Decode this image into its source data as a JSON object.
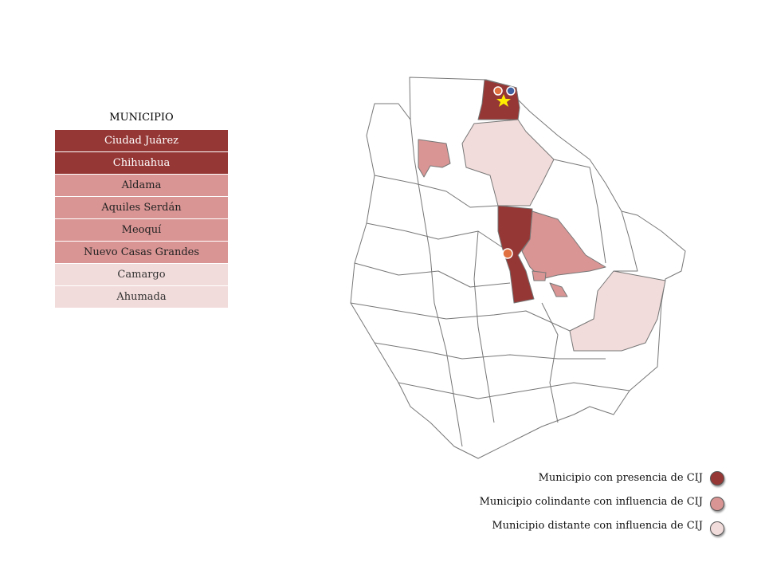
{
  "table": {
    "header": "MUNICIPIO",
    "rows": [
      "Ciudad Juárez",
      "Chihuahua",
      "Aldama",
      "Aquiles Serdán",
      "Meoquí",
      "Nuevo Casas Grandes",
      "Camargo",
      "Ahumada"
    ]
  },
  "legend": [
    "Municipio con presencia de CIJ",
    "Municipio colindante con influencia de CIJ",
    "Municipio distante con influencia de CIJ"
  ]
}
